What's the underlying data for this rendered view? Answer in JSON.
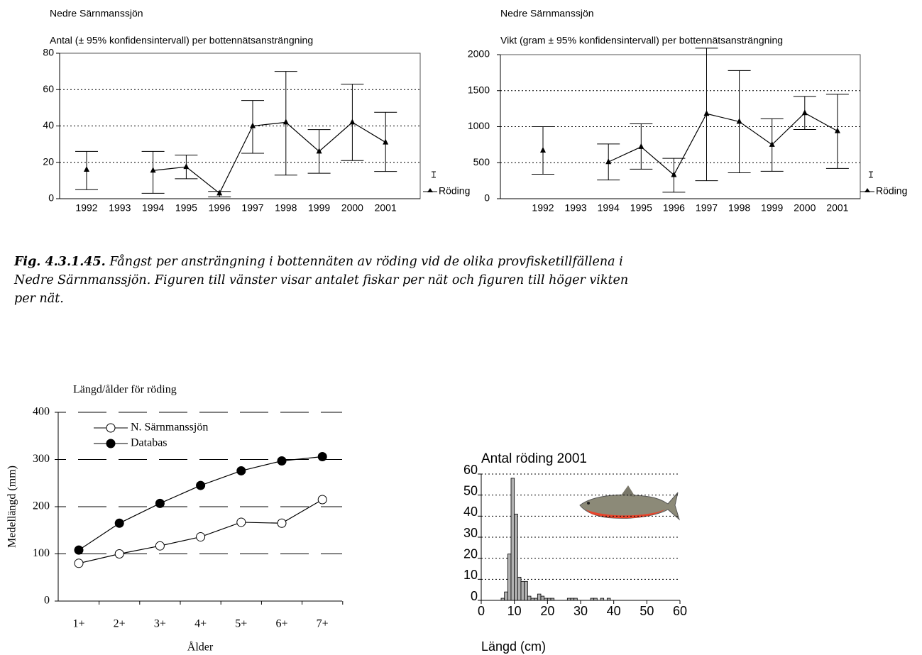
{
  "chart_data": [
    {
      "type": "line",
      "title": "Nedre Särnmanssjön",
      "subtitle": "Antal (± 95% konfidensintervall) per bottennätsansträngning",
      "categories": [
        "1992",
        "1993",
        "1994",
        "1995",
        "1996",
        "1997",
        "1998",
        "1999",
        "2000",
        "2001"
      ],
      "series": [
        {
          "name": "Röding",
          "color": "#000000",
          "marker": "triangle",
          "values": [
            16,
            null,
            15.5,
            17.5,
            3,
            40,
            42,
            26,
            42,
            31
          ],
          "ci_low": [
            5,
            null,
            3,
            11,
            1,
            25,
            13,
            14,
            21,
            15
          ],
          "ci_high": [
            26,
            null,
            26,
            24,
            4,
            54,
            70,
            38,
            63,
            47.5
          ]
        }
      ],
      "ylim": [
        0,
        80
      ],
      "yticks": [
        0,
        20,
        40,
        60,
        80
      ],
      "grid": "dotted",
      "legend": "bottom-right"
    },
    {
      "type": "line",
      "title": "Nedre Särnmanssjön",
      "subtitle": "Vikt (gram ± 95% konfidensintervall) per bottennätsansträngning",
      "categories": [
        "1992",
        "1993",
        "1994",
        "1995",
        "1996",
        "1997",
        "1998",
        "1999",
        "2000",
        "2001"
      ],
      "series": [
        {
          "name": "Röding",
          "color": "#000000",
          "marker": "triangle",
          "values": [
            670,
            null,
            510,
            720,
            330,
            1180,
            1070,
            750,
            1190,
            940
          ],
          "ci_low": [
            340,
            null,
            260,
            410,
            90,
            250,
            360,
            380,
            960,
            420
          ],
          "ci_high": [
            1000,
            null,
            760,
            1040,
            560,
            2090,
            1780,
            1110,
            1420,
            1450
          ]
        }
      ],
      "ylim": [
        0,
        2000
      ],
      "yticks": [
        0,
        500,
        1000,
        1500,
        2000
      ],
      "grid": "dotted",
      "legend": "bottom-right"
    },
    {
      "type": "line",
      "title": "Längd/ålder för röding",
      "xlabel": "Ålder",
      "ylabel": "Medellängd (mm)",
      "categories": [
        "1+",
        "2+",
        "3+",
        "4+",
        "5+",
        "6+",
        "7+"
      ],
      "series": [
        {
          "name": "N. Särnmanssjön",
          "color": "#ffffff",
          "marker": "circle",
          "values": [
            80,
            100,
            117,
            136,
            167,
            165,
            215
          ]
        },
        {
          "name": "Databas",
          "color": "#000000",
          "marker": "circle",
          "values": [
            108,
            165,
            207,
            245,
            276,
            297,
            306
          ]
        }
      ],
      "ylim": [
        0,
        400
      ],
      "yticks": [
        0,
        100,
        200,
        300,
        400
      ],
      "grid": "dashed",
      "legend": "top-left"
    },
    {
      "type": "histogram",
      "title": "Antal röding 2001",
      "xlabel": "Längd (cm)",
      "color": "#b0b0b0",
      "bins": [
        6,
        7,
        8,
        9,
        10,
        11,
        12,
        13,
        14,
        15,
        16,
        17,
        18,
        19,
        20,
        21,
        22,
        23,
        24,
        25,
        26,
        27,
        28,
        29,
        30,
        31,
        32,
        33,
        34,
        35,
        36,
        37,
        38,
        39,
        40
      ],
      "counts": [
        1,
        4,
        22,
        58,
        41,
        11,
        9,
        9,
        2,
        1,
        1,
        3,
        2,
        1,
        1,
        1,
        0,
        0,
        0,
        0,
        1,
        1,
        1,
        0,
        0,
        0,
        0,
        1,
        1,
        0,
        1,
        0,
        1,
        0
      ],
      "xlim": [
        0,
        60
      ],
      "xticks": [
        0,
        10,
        20,
        30,
        40,
        50,
        60
      ],
      "ylim": [
        0,
        60
      ],
      "yticks": [
        0,
        10,
        20,
        30,
        40,
        50,
        60
      ],
      "grid": "dotted"
    }
  ],
  "caption": {
    "label": "Fig. 4.3.1.45.",
    "text": "Fångst per ansträngning i bottennäten av röding vid de olika provfisketillfällena i Nedre Särnmanssjön. Figuren till vänster visar antalet fiskar per nät och figuren till höger vikten per nät."
  }
}
